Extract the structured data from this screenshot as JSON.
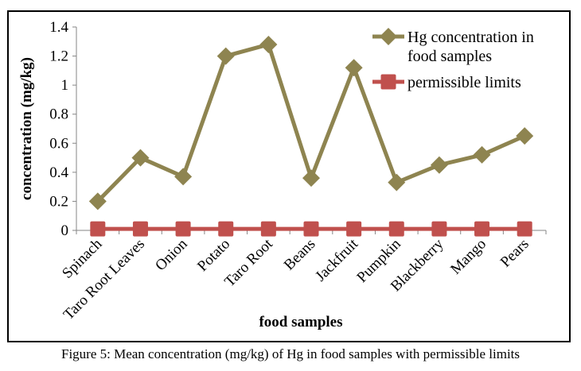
{
  "chart_data": {
    "type": "line",
    "categories": [
      "Spinach",
      "Taro Root Leaves",
      "Onion",
      "Potato",
      "Taro Root",
      "Beans",
      "Jackfruit",
      "Pumpkin",
      "Blackberry",
      "Mango",
      "Pears"
    ],
    "series": [
      {
        "name": "Hg concentration in food samples",
        "name_lines": [
          "Hg concentration in",
          "food samples"
        ],
        "values": [
          0.2,
          0.5,
          0.37,
          1.2,
          1.28,
          0.36,
          1.12,
          0.33,
          0.45,
          0.52,
          0.65
        ],
        "color": "#8e8450",
        "marker": "diamond"
      },
      {
        "name": "permissible limits",
        "name_lines": [
          "permissible limits"
        ],
        "values": [
          0.01,
          0.01,
          0.01,
          0.01,
          0.01,
          0.01,
          0.01,
          0.01,
          0.01,
          0.01,
          0.01
        ],
        "color": "#c0504d",
        "marker": "square"
      }
    ],
    "xlabel": "food samples",
    "ylabel": "concentration (mg/kg)",
    "ylim": [
      0,
      1.4
    ],
    "yticks": [
      "0",
      "0.2",
      "0.4",
      "0.6",
      "0.8",
      "1",
      "1.2",
      "1.4"
    ],
    "grid": false,
    "legend": "top-right"
  },
  "caption": "Figure 5: Mean concentration (mg/kg) of Hg in food samples with permissible limits"
}
